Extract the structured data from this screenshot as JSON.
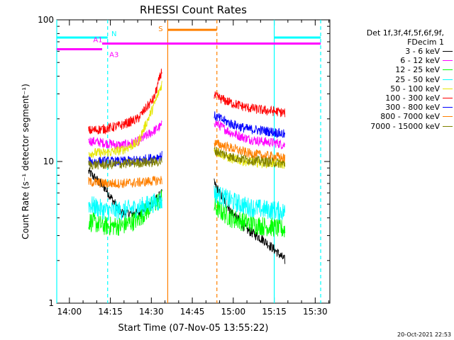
{
  "chart_data": {
    "type": "line",
    "title": "RHESSI Count Rates",
    "xlabel": "Start Time (07-Nov-05 13:55:22)",
    "ylabel": "Count Rate (s⁻¹ detector segment⁻¹)",
    "x_start": "13:55:22",
    "xlim": [
      "13:55:22",
      "15:35:22"
    ],
    "ylim": [
      1,
      100
    ],
    "yscale": "log",
    "xticks": [
      "14:00",
      "14:15",
      "14:30",
      "14:45",
      "15:00",
      "15:15",
      "15:30"
    ],
    "yticks": [
      "1",
      "10",
      "100"
    ],
    "legend_header": [
      "Det 1f,3f,4f,5f,6f,9f,",
      "FDecim 1"
    ],
    "legend_position": "right",
    "series": [
      {
        "name": "3 - 6 keV",
        "color": "#000000",
        "x": [
          "14:07",
          "14:13",
          "14:19",
          "14:25",
          "14:31",
          "14:34",
          "14:53",
          "14:59",
          "15:05",
          "15:11",
          "15:16",
          "15:19"
        ],
        "values": [
          8.5,
          6.5,
          4.3,
          4.3,
          5.2,
          6,
          7,
          4.5,
          3.3,
          2.8,
          2.3,
          2.0
        ]
      },
      {
        "name": "6 - 12 keV",
        "color": "#ff00ff",
        "x": [
          "14:07",
          "14:13",
          "14:19",
          "14:25",
          "14:31",
          "14:34",
          "14:53",
          "14:59",
          "15:05",
          "15:11",
          "15:16",
          "15:19"
        ],
        "values": [
          14,
          13.5,
          13,
          13.8,
          16.5,
          18,
          19,
          16,
          14.5,
          13.8,
          13.5,
          13
        ]
      },
      {
        "name": "12 - 25 keV",
        "color": "#00ff00",
        "x": [
          "14:07",
          "14:13",
          "14:19",
          "14:25",
          "14:31",
          "14:34",
          "14:53",
          "14:59",
          "15:05",
          "15:11",
          "15:16",
          "15:19"
        ],
        "values": [
          3.8,
          3.5,
          3.5,
          3.9,
          5.0,
          5.5,
          4.8,
          4.0,
          3.7,
          3.5,
          3.4,
          3.3
        ]
      },
      {
        "name": "25 - 50 keV",
        "color": "#00ffff",
        "x": [
          "14:07",
          "14:13",
          "14:19",
          "14:25",
          "14:31",
          "14:34",
          "14:53",
          "14:59",
          "15:05",
          "15:11",
          "15:16",
          "15:19"
        ],
        "values": [
          5.0,
          4.5,
          4.5,
          4.7,
          5.1,
          5.3,
          6.0,
          5.3,
          4.8,
          4.6,
          4.5,
          4.4
        ]
      },
      {
        "name": "50 - 100 keV",
        "color": "#e6e600",
        "x": [
          "14:07",
          "14:13",
          "14:19",
          "14:25",
          "14:31",
          "14:34",
          "14:53",
          "14:59",
          "15:05",
          "15:11",
          "15:16",
          "15:19"
        ],
        "values": [
          11.5,
          11.5,
          12,
          13.5,
          25,
          36,
          12,
          10.5,
          10,
          9.8,
          9.7,
          9.6
        ]
      },
      {
        "name": "100 - 300 keV",
        "color": "#ff0000",
        "x": [
          "14:07",
          "14:13",
          "14:19",
          "14:25",
          "14:31",
          "14:34",
          "14:53",
          "14:59",
          "15:05",
          "15:11",
          "15:16",
          "15:19"
        ],
        "values": [
          16.5,
          17,
          18,
          20,
          28,
          45,
          29,
          26,
          24,
          23,
          22.5,
          22
        ]
      },
      {
        "name": "300 - 800 keV",
        "color": "#0000ff",
        "x": [
          "14:07",
          "14:13",
          "14:19",
          "14:25",
          "14:31",
          "14:34",
          "14:53",
          "14:59",
          "15:05",
          "15:11",
          "15:16",
          "15:19"
        ],
        "values": [
          10,
          10,
          10,
          10.2,
          10.6,
          11,
          21,
          18.5,
          17,
          16.5,
          16,
          15.5
        ]
      },
      {
        "name": "800 - 7000 keV",
        "color": "#ff8000",
        "x": [
          "14:07",
          "14:13",
          "14:19",
          "14:25",
          "14:31",
          "14:34",
          "14:53",
          "14:59",
          "15:05",
          "15:11",
          "15:16",
          "15:19"
        ],
        "values": [
          7.2,
          7.0,
          7.0,
          7.1,
          7.3,
          7.4,
          13.5,
          12.5,
          11.5,
          11,
          10.8,
          10.5
        ]
      },
      {
        "name": "7000 - 15000 keV",
        "color": "#808000",
        "x": [
          "14:07",
          "14:13",
          "14:19",
          "14:25",
          "14:31",
          "14:34",
          "14:53",
          "14:59",
          "15:05",
          "15:11",
          "15:16",
          "15:19"
        ],
        "values": [
          9.5,
          9.5,
          9.6,
          9.8,
          9.9,
          10,
          12,
          10.8,
          10.3,
          10.0,
          9.8,
          9.6
        ]
      }
    ],
    "annotations": [
      {
        "label": "N",
        "color": "#00ffff",
        "y": 75,
        "x_ranges": [
          [
            "13:55:22",
            "14:14"
          ],
          [
            "15:15",
            "15:32"
          ]
        ]
      },
      {
        "label": "A1",
        "color": "#ff00ff",
        "y": 68,
        "x_ranges": [
          [
            "14:12",
            "15:32"
          ]
        ]
      },
      {
        "label": "A3",
        "color": "#ff00ff",
        "y": 62,
        "x_ranges": [
          [
            "13:55:22",
            "14:12"
          ]
        ]
      },
      {
        "label": "S",
        "color": "#ff8000",
        "y": 85,
        "x_ranges": [
          [
            "14:36",
            "14:54"
          ]
        ]
      }
    ],
    "vlines": [
      {
        "x": "13:55:22",
        "color": "#00ffff",
        "style": "solid"
      },
      {
        "x": "14:14",
        "color": "#00ffff",
        "style": "dashed"
      },
      {
        "x": "14:36",
        "color": "#ff8000",
        "style": "solid"
      },
      {
        "x": "14:54",
        "color": "#ff8000",
        "style": "dashed"
      },
      {
        "x": "15:15",
        "color": "#00ffff",
        "style": "solid"
      },
      {
        "x": "15:32",
        "color": "#00ffff",
        "style": "dashed"
      }
    ],
    "grid": false
  },
  "footer": "20-Oct-2021 22:53"
}
